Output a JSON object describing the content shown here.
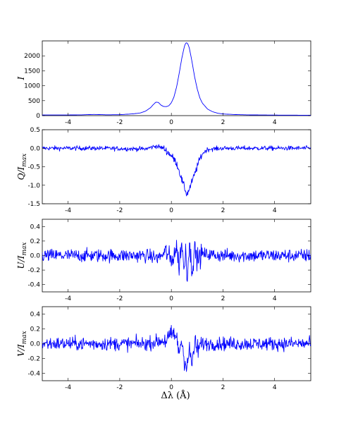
{
  "chart_data": [
    {
      "type": "line",
      "id": "stokes-i",
      "ylabel": "I",
      "xlim": [
        -5,
        5.4
      ],
      "ylim": [
        0,
        2500
      ],
      "xticks": [
        -4,
        -2,
        0,
        2,
        4
      ],
      "yticks": [
        0,
        500,
        1000,
        1500,
        2000
      ],
      "ytick_labels": [
        "0",
        "500",
        "1000",
        "1500",
        "2000"
      ],
      "series": [
        {
          "color": "#0000ff",
          "noise": 0,
          "x": [
            -5.0,
            -4.0,
            -3.5,
            -3.0,
            -2.5,
            -2.0,
            -1.5,
            -1.2,
            -1.0,
            -0.8,
            -0.7,
            -0.6,
            -0.5,
            -0.4,
            -0.3,
            -0.2,
            -0.1,
            0.0,
            0.1,
            0.2,
            0.3,
            0.4,
            0.5,
            0.55,
            0.6,
            0.65,
            0.7,
            0.8,
            0.9,
            1.0,
            1.1,
            1.2,
            1.4,
            1.6,
            1.8,
            2.0,
            2.5,
            3.0,
            4.0,
            5.0,
            5.4
          ],
          "y": [
            20,
            22,
            26,
            40,
            28,
            32,
            58,
            90,
            150,
            270,
            370,
            450,
            440,
            350,
            305,
            300,
            330,
            430,
            620,
            950,
            1400,
            1900,
            2300,
            2420,
            2440,
            2380,
            2250,
            1800,
            1300,
            900,
            600,
            420,
            220,
            130,
            80,
            55,
            35,
            25,
            18,
            15,
            15
          ]
        }
      ]
    },
    {
      "type": "line",
      "id": "stokes-q",
      "ylabel": "Q/I_max",
      "xlim": [
        -5,
        5.4
      ],
      "ylim": [
        -1.5,
        0.5
      ],
      "xticks": [
        -4,
        -2,
        0,
        2,
        4
      ],
      "yticks": [
        -1.5,
        -1.0,
        -0.5,
        0.0,
        0.5
      ],
      "ytick_labels": [
        "-1.5",
        "-1.0",
        "-0.5",
        "0.0",
        "0.5"
      ],
      "series": [
        {
          "color": "#0000ff",
          "noise": 0.03,
          "x": [
            -5.0,
            -3.0,
            -1.0,
            -0.6,
            -0.3,
            0.0,
            0.2,
            0.3,
            0.4,
            0.5,
            0.6,
            0.7,
            0.8,
            0.9,
            1.0,
            1.1,
            1.2,
            1.4,
            2.0,
            3.0,
            5.4
          ],
          "y": [
            0.0,
            0.0,
            -0.02,
            0.06,
            0.0,
            -0.2,
            -0.4,
            -0.6,
            -0.85,
            -1.05,
            -1.25,
            -1.1,
            -0.9,
            -0.7,
            -0.5,
            -0.3,
            -0.15,
            -0.03,
            0.0,
            0.0,
            0.0
          ]
        }
      ]
    },
    {
      "type": "line",
      "id": "stokes-u",
      "ylabel": "U/I_max",
      "xlim": [
        -5,
        5.4
      ],
      "ylim": [
        -0.5,
        0.5
      ],
      "xticks": [
        -4,
        -2,
        0,
        2,
        4
      ],
      "yticks": [
        -0.4,
        -0.2,
        0.0,
        0.2,
        0.4
      ],
      "ytick_labels": [
        "-0.4",
        "-0.2",
        "0.0",
        "0.2",
        "0.4"
      ],
      "series": [
        {
          "color": "#0000ff",
          "noise": 0.045,
          "x": [
            -5.0,
            -2.0,
            -1.0,
            -0.5,
            -0.2,
            0.0,
            0.2,
            0.3,
            0.4,
            0.5,
            0.55,
            0.6,
            0.7,
            0.8,
            0.9,
            1.0,
            1.2,
            2.0,
            5.4
          ],
          "y": [
            0.0,
            0.0,
            0.0,
            -0.03,
            0.05,
            -0.08,
            0.12,
            -0.15,
            0.2,
            -0.25,
            0.18,
            -0.3,
            0.15,
            -0.2,
            0.1,
            -0.05,
            0.02,
            0.0,
            0.0
          ]
        }
      ]
    },
    {
      "type": "line",
      "id": "stokes-v",
      "ylabel": "V/I_max",
      "xlim": [
        -5,
        5.4
      ],
      "ylim": [
        -0.5,
        0.5
      ],
      "xticks": [
        -4,
        -2,
        0,
        2,
        4
      ],
      "yticks": [
        -0.4,
        -0.2,
        0.0,
        0.2,
        0.4
      ],
      "ytick_labels": [
        "-0.4",
        "-0.2",
        "0.0",
        "0.2",
        "0.4"
      ],
      "xlabel": "Δλ (Å)",
      "series": [
        {
          "color": "#0000ff",
          "noise": 0.045,
          "x": [
            -5.0,
            -2.0,
            -1.0,
            -0.2,
            0.0,
            0.1,
            0.2,
            0.3,
            0.4,
            0.5,
            0.6,
            0.7,
            0.8,
            0.9,
            1.0,
            1.2,
            2.0,
            5.4
          ],
          "y": [
            0.0,
            0.0,
            0.0,
            0.05,
            0.1,
            0.15,
            0.05,
            -0.1,
            0.05,
            -0.2,
            -0.3,
            -0.1,
            -0.28,
            0.0,
            -0.08,
            0.0,
            0.0,
            0.0
          ]
        }
      ]
    }
  ]
}
